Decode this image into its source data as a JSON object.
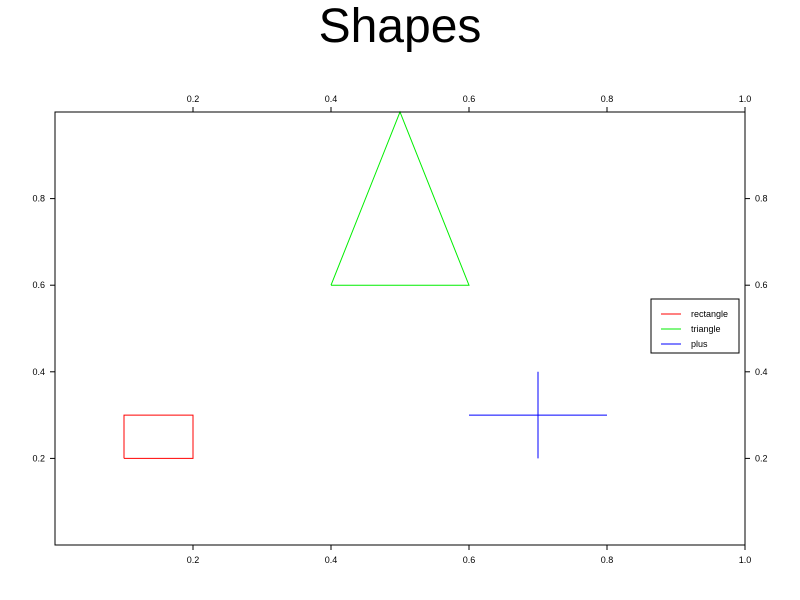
{
  "chart_data": {
    "type": "line",
    "title": "Shapes",
    "xlabel": "",
    "ylabel": "",
    "xlim": [
      0,
      1.0
    ],
    "ylim": [
      0,
      1.0
    ],
    "x_ticks": [
      {
        "value": 0.2,
        "label": "0.2"
      },
      {
        "value": 0.4,
        "label": "0.4"
      },
      {
        "value": 0.6,
        "label": "0.6"
      },
      {
        "value": 0.8,
        "label": "0.8"
      },
      {
        "value": 1.0,
        "label": "1.0"
      }
    ],
    "y_ticks": [
      {
        "value": 0.2,
        "label": "0.2"
      },
      {
        "value": 0.4,
        "label": "0.4"
      },
      {
        "value": 0.6,
        "label": "0.6"
      },
      {
        "value": 0.8,
        "label": "0.8"
      }
    ],
    "grid": false,
    "legend_position": "right",
    "series": [
      {
        "name": "rectangle",
        "color": "#ff0000",
        "segments": [
          [
            [
              0.1,
              0.2
            ],
            [
              0.2,
              0.2
            ],
            [
              0.2,
              0.3
            ],
            [
              0.1,
              0.3
            ],
            [
              0.1,
              0.2
            ]
          ]
        ]
      },
      {
        "name": "triangle",
        "color": "#00ee00",
        "segments": [
          [
            [
              0.4,
              0.6
            ],
            [
              0.6,
              0.6
            ],
            [
              0.5,
              1.0
            ],
            [
              0.4,
              0.6
            ]
          ]
        ]
      },
      {
        "name": "plus",
        "color": "#0000ff",
        "segments": [
          [
            [
              0.6,
              0.3
            ],
            [
              0.8,
              0.3
            ]
          ],
          [
            [
              0.7,
              0.2
            ],
            [
              0.7,
              0.4
            ]
          ]
        ]
      }
    ]
  }
}
